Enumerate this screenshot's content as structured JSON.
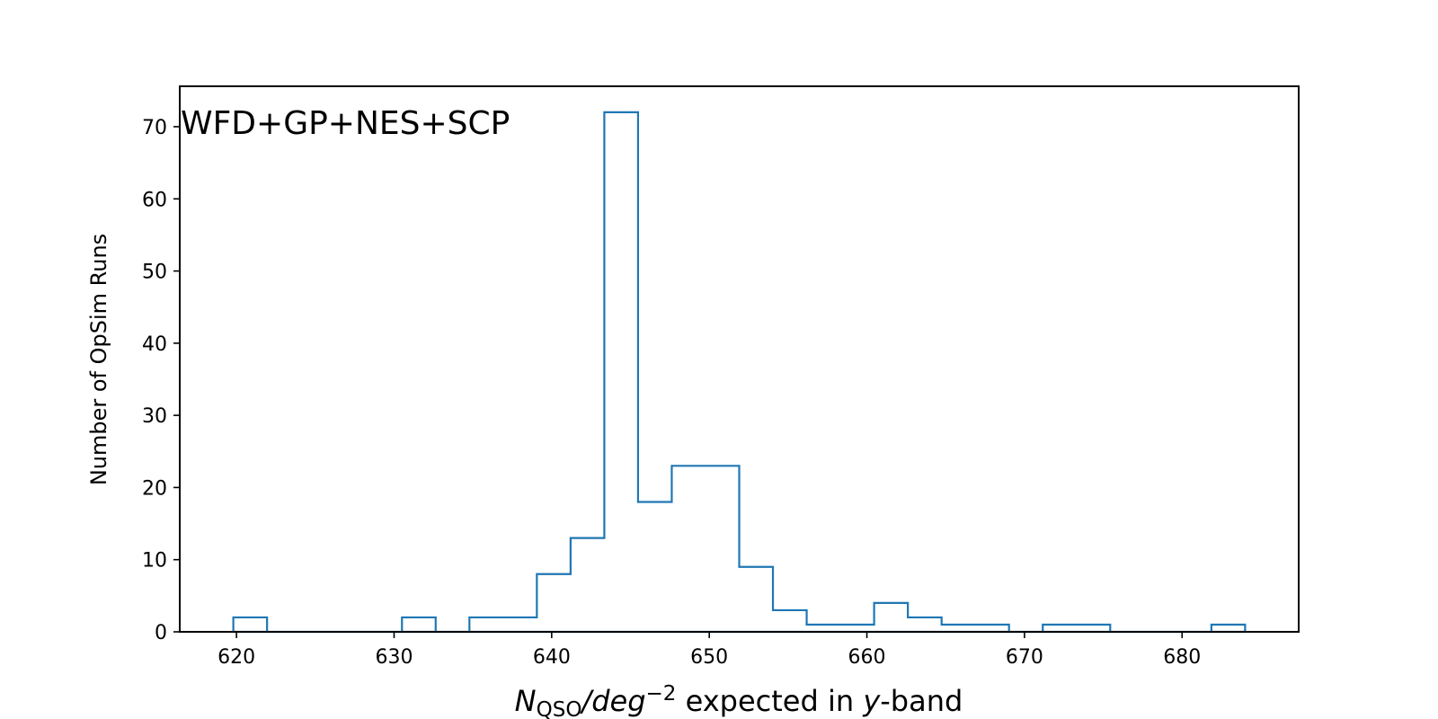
{
  "chart_data": {
    "type": "histogram",
    "annotation": "WFD+GP+NES+SCP",
    "xlabel": {
      "n": "N",
      "sub": "QSO",
      "slash": "/",
      "deg": "deg",
      "sup": "−2",
      "mid": " expected in ",
      "y": "y",
      "tail": "-band"
    },
    "ylabel": "Number of OpSim Runs",
    "xlim": [
      616.4,
      687.4
    ],
    "ylim": [
      0,
      75.6
    ],
    "xticks": [
      620,
      630,
      640,
      650,
      660,
      670,
      680
    ],
    "yticks": [
      0,
      10,
      20,
      30,
      40,
      50,
      60,
      70
    ],
    "bin_edges": [
      619.8,
      621.94,
      624.08,
      626.22,
      628.36,
      630.5,
      632.64,
      634.78,
      636.92,
      639.06,
      641.2,
      643.34,
      645.48,
      647.62,
      649.76,
      651.9,
      654.04,
      656.18,
      658.32,
      660.46,
      662.6,
      664.74,
      666.88,
      669.02,
      671.16,
      673.3,
      675.44,
      677.58,
      679.72,
      681.86,
      684.0
    ],
    "counts": [
      2,
      0,
      0,
      0,
      0,
      2,
      0,
      2,
      2,
      8,
      13,
      72,
      18,
      23,
      23,
      9,
      3,
      1,
      1,
      4,
      2,
      1,
      1,
      0,
      1,
      1,
      0,
      0,
      0,
      1
    ],
    "color": "#1f77b4",
    "grid": false
  }
}
